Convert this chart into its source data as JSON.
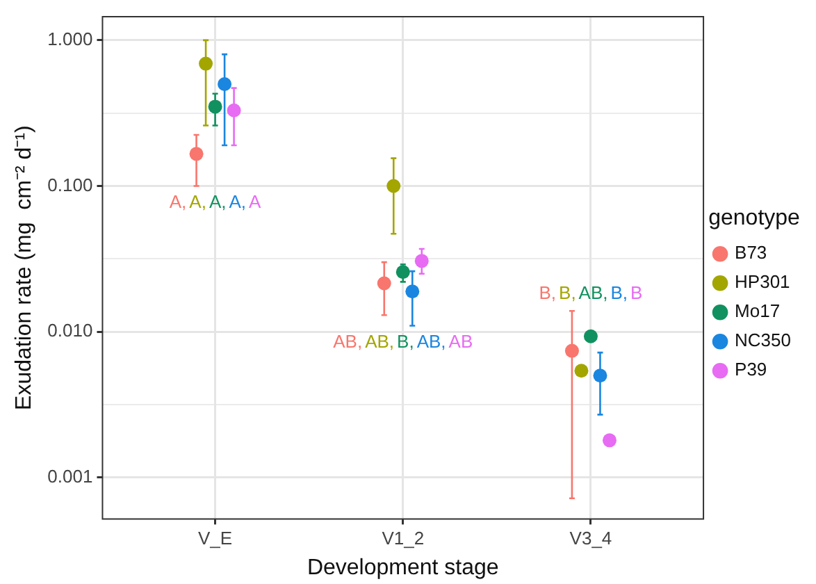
{
  "chart_data": {
    "type": "scatter",
    "xlabel": "Development stage",
    "ylabel": "Exudation rate (mg  cm⁻² d⁻¹)",
    "legend_title": "genotype",
    "legend": "right",
    "grid": true,
    "log": "y",
    "marker": "circle",
    "categories": [
      "V_E",
      "V1_2",
      "V3_4"
    ],
    "ylim": [
      0.00052,
      1.45
    ],
    "annotations": [
      "A,",
      "A,",
      "A,",
      "A,",
      "A",
      "AB,",
      "AB,",
      "B,",
      "AB,",
      "AB",
      "B,",
      "B,",
      "AB,",
      "B,",
      "B"
    ],
    "yticks": [
      {
        "value": 0.001,
        "label": "0.001"
      },
      {
        "value": 0.003162,
        "label": null
      },
      {
        "value": 0.01,
        "label": "0.010"
      },
      {
        "value": 0.03162,
        "label": null
      },
      {
        "value": 0.1,
        "label": "0.100"
      },
      {
        "value": 0.3162,
        "label": null
      },
      {
        "value": 1,
        "label": "1.000"
      }
    ],
    "series": [
      {
        "name": "B73",
        "color": "#f8766d",
        "values": [
          0.166,
          0.0215,
          0.0074
        ],
        "errors": [
          [
            0.1,
            0.224
          ],
          [
            0.013,
            0.03
          ],
          [
            0.00072,
            0.0139
          ]
        ]
      },
      {
        "name": "HP301",
        "color": "#a3a500",
        "values": [
          0.69,
          0.1,
          0.0054
        ],
        "errors": [
          [
            0.26,
            1.0
          ],
          [
            0.047,
            0.155
          ],
          null
        ]
      },
      {
        "name": "Mo17",
        "color": "#11915f",
        "values": [
          0.35,
          0.0257,
          0.0093
        ],
        "errors": [
          [
            0.26,
            0.43
          ],
          [
            0.022,
            0.029
          ],
          null
        ]
      },
      {
        "name": "NC350",
        "color": "#1a86e0",
        "values": [
          0.5,
          0.0189,
          0.005
        ],
        "errors": [
          [
            0.19,
            0.8
          ],
          [
            0.011,
            0.026
          ],
          [
            0.0027,
            0.0072
          ]
        ]
      },
      {
        "name": "P39",
        "color": "#e76bf3",
        "values": [
          0.33,
          0.0306,
          0.0018
        ],
        "errors": [
          [
            0.19,
            0.47
          ],
          [
            0.025,
            0.037
          ],
          null
        ]
      }
    ]
  }
}
